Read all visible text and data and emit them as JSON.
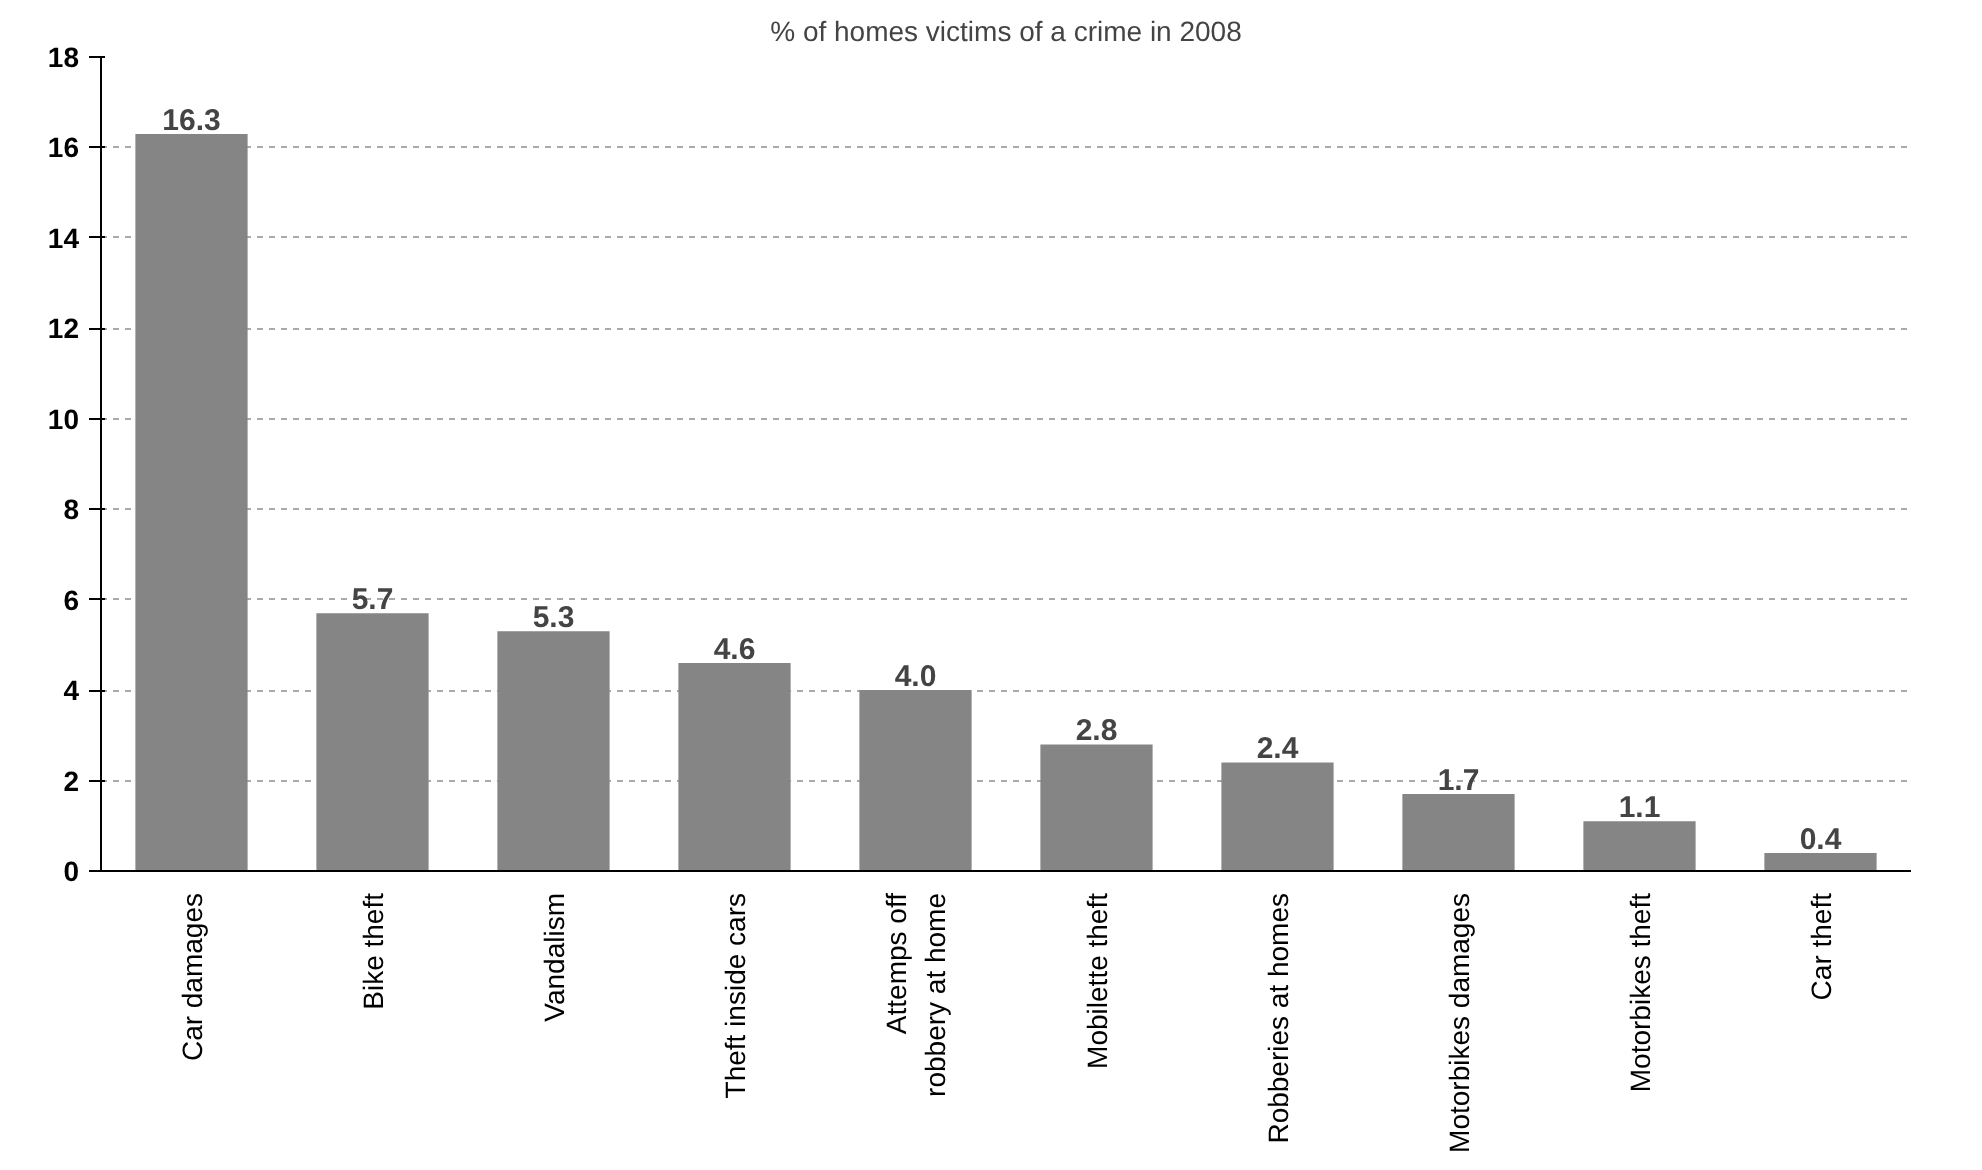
{
  "chart_data": {
    "type": "bar",
    "title": "% of homes victims of a crime in 2008",
    "categories": [
      "Car damages",
      "Bike theft",
      "Vandalism",
      "Theft inside cars",
      "Attemps off robbery at home",
      "Mobilette theft",
      "Robberies at homes",
      "Motorbikes damages",
      "Motorbikes theft",
      "Car theft"
    ],
    "values": [
      16.3,
      5.7,
      5.3,
      4.6,
      4.0,
      2.8,
      2.4,
      1.7,
      1.1,
      0.4
    ],
    "value_labels": [
      "16.3",
      "5.7",
      "5.3",
      "4.6",
      "4.0",
      "2.8",
      "2.4",
      "1.7",
      "1.1",
      "0.4"
    ],
    "color": "#858585",
    "ylim": [
      0,
      18
    ],
    "yticks": [
      0,
      2,
      4,
      6,
      8,
      10,
      12,
      14,
      16,
      18
    ],
    "grid": "y"
  }
}
